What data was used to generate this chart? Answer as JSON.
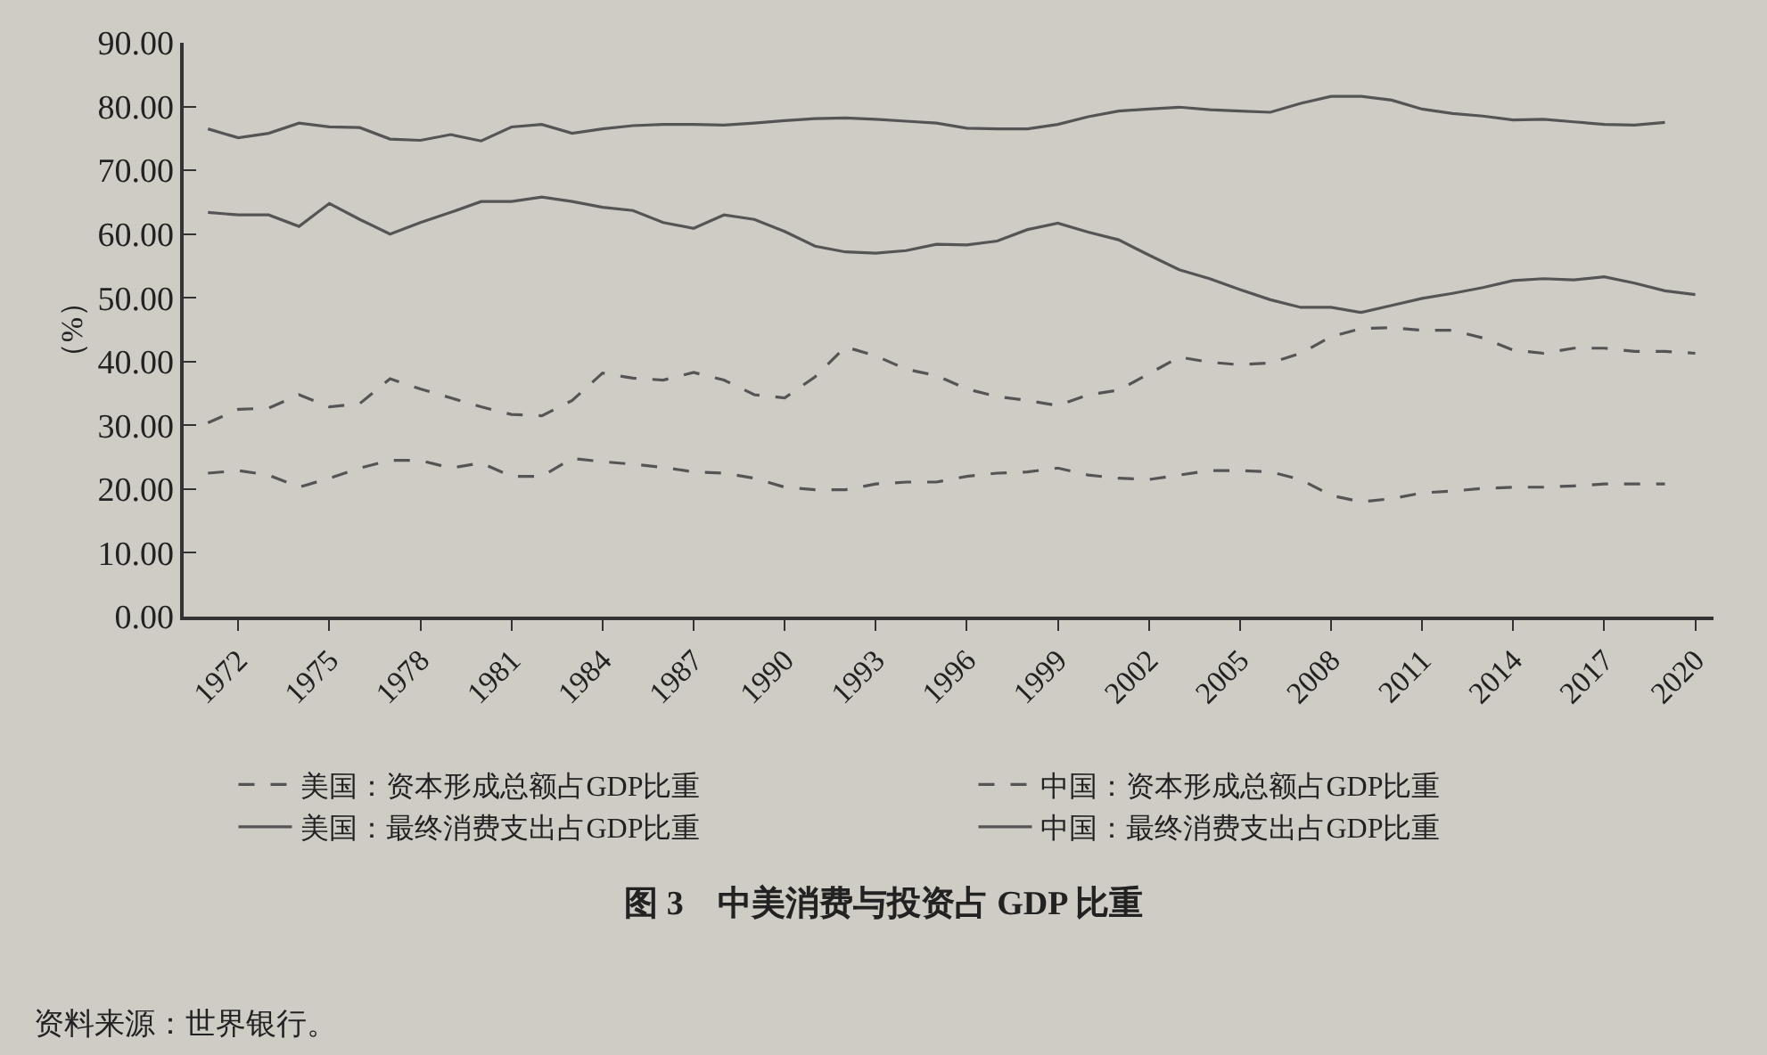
{
  "chart_data": {
    "type": "line",
    "title": "图 3　中美消费与投资占 GDP 比重",
    "ylabel": "（%）",
    "annotations": [
      "资料来源：世界银行。"
    ],
    "xlim": [
      1970.2,
      2020.6
    ],
    "xticks": [
      1972,
      1975,
      1978,
      1981,
      1984,
      1987,
      1990,
      1993,
      1996,
      1999,
      2002,
      2005,
      2008,
      2011,
      2014,
      2017,
      2020
    ],
    "ylim": [
      0,
      90
    ],
    "yticks": [
      {
        "value": 0,
        "label": "0.00"
      },
      {
        "value": 10,
        "label": "10.00"
      },
      {
        "value": 20,
        "label": "20.00"
      },
      {
        "value": 30,
        "label": "30.00"
      },
      {
        "value": 40,
        "label": "40.00"
      },
      {
        "value": 50,
        "label": "50.00"
      },
      {
        "value": 60,
        "label": "60.00"
      },
      {
        "value": 70,
        "label": "70.00"
      },
      {
        "value": 80,
        "label": "80.00"
      },
      {
        "value": 90,
        "label": "90.00"
      }
    ],
    "grid": false,
    "legend": "bottom",
    "marker": "none",
    "series": [
      {
        "name": "美国：资本形成总额占GDP比重",
        "color": "#555555",
        "line_style": "dashed",
        "x": [
          1971,
          1972,
          1973,
          1974,
          1975,
          1976,
          1977,
          1978,
          1979,
          1980,
          1981,
          1982,
          1983,
          1984,
          1985,
          1986,
          1987,
          1988,
          1989,
          1990,
          1991,
          1992,
          1993,
          1994,
          1995,
          1996,
          1997,
          1998,
          1999,
          2000,
          2001,
          2002,
          2003,
          2004,
          2005,
          2006,
          2007,
          2008,
          2009,
          2010,
          2011,
          2012,
          2013,
          2014,
          2015,
          2016,
          2017,
          2018,
          2019
        ],
        "values": [
          22.5,
          22.9,
          22.2,
          20.3,
          21.7,
          23.3,
          24.5,
          24.5,
          23.3,
          24.1,
          22.0,
          22.0,
          24.8,
          24.3,
          23.9,
          23.4,
          22.7,
          22.5,
          21.7,
          20.3,
          19.9,
          19.9,
          20.8,
          21.1,
          21.1,
          22.0,
          22.5,
          22.7,
          23.3,
          22.2,
          21.7,
          21.5,
          22.2,
          22.9,
          22.9,
          22.7,
          21.5,
          19.0,
          18.0,
          18.5,
          19.4,
          19.7,
          20.1,
          20.3,
          20.3,
          20.5,
          20.8,
          20.8,
          20.8
        ]
      },
      {
        "name": "中国：资本形成总额占GDP比重",
        "color": "#555555",
        "line_style": "dashed",
        "x": [
          1971,
          1972,
          1973,
          1974,
          1975,
          1976,
          1977,
          1978,
          1979,
          1980,
          1981,
          1982,
          1983,
          1984,
          1985,
          1986,
          1987,
          1988,
          1989,
          1990,
          1991,
          1992,
          1993,
          1994,
          1995,
          1996,
          1997,
          1998,
          1999,
          2000,
          2001,
          2002,
          2003,
          2004,
          2005,
          2006,
          2007,
          2008,
          2009,
          2010,
          2011,
          2012,
          2013,
          2014,
          2015,
          2016,
          2017,
          2018,
          2019,
          2020
        ],
        "values": [
          30.4,
          32.5,
          32.7,
          34.8,
          32.9,
          33.4,
          37.3,
          35.7,
          34.3,
          32.9,
          31.7,
          31.5,
          33.9,
          38.2,
          37.4,
          37.1,
          38.3,
          37.1,
          34.8,
          34.3,
          37.6,
          42.3,
          40.9,
          38.8,
          37.8,
          35.7,
          34.5,
          33.9,
          33.1,
          34.8,
          35.5,
          38.1,
          40.7,
          39.9,
          39.5,
          39.8,
          41.3,
          43.9,
          45.2,
          45.3,
          44.9,
          44.9,
          43.7,
          41.8,
          41.3,
          42.1,
          42.1,
          41.6,
          41.6,
          41.3
        ]
      },
      {
        "name": "美国：最终消费支出占GDP比重",
        "color": "#555555",
        "line_style": "solid",
        "x": [
          1971,
          1972,
          1973,
          1974,
          1975,
          1976,
          1977,
          1978,
          1979,
          1980,
          1981,
          1982,
          1983,
          1984,
          1985,
          1986,
          1987,
          1988,
          1989,
          1990,
          1991,
          1992,
          1993,
          1994,
          1995,
          1996,
          1997,
          1998,
          1999,
          2000,
          2001,
          2002,
          2003,
          2004,
          2005,
          2006,
          2007,
          2008,
          2009,
          2010,
          2011,
          2012,
          2013,
          2014,
          2015,
          2016,
          2017,
          2018,
          2019
        ],
        "values": [
          76.5,
          75.1,
          75.8,
          77.4,
          76.8,
          76.7,
          74.9,
          74.7,
          75.6,
          74.6,
          76.8,
          77.2,
          75.8,
          76.5,
          77.0,
          77.2,
          77.2,
          77.1,
          77.4,
          77.8,
          78.1,
          78.2,
          78.0,
          77.7,
          77.4,
          76.6,
          76.5,
          76.5,
          77.2,
          78.4,
          79.3,
          79.6,
          79.9,
          79.5,
          79.3,
          79.1,
          80.5,
          81.6,
          81.6,
          81.0,
          79.6,
          78.9,
          78.5,
          77.9,
          78.0,
          77.6,
          77.2,
          77.1,
          77.5
        ]
      },
      {
        "name": "中国：最终消费支出占GDP比重",
        "color": "#555555",
        "line_style": "solid",
        "x": [
          1971,
          1972,
          1973,
          1974,
          1975,
          1976,
          1977,
          1978,
          1979,
          1980,
          1981,
          1982,
          1983,
          1984,
          1985,
          1986,
          1987,
          1988,
          1989,
          1990,
          1991,
          1992,
          1993,
          1994,
          1995,
          1996,
          1997,
          1998,
          1999,
          2000,
          2001,
          2002,
          2003,
          2004,
          2005,
          2006,
          2007,
          2008,
          2009,
          2010,
          2011,
          2012,
          2013,
          2014,
          2015,
          2016,
          2017,
          2018,
          2019,
          2020
        ],
        "values": [
          63.4,
          63.0,
          63.0,
          61.2,
          64.8,
          62.3,
          60.0,
          61.8,
          63.4,
          65.1,
          65.1,
          65.8,
          65.1,
          64.2,
          63.7,
          61.8,
          60.9,
          63.0,
          62.3,
          60.4,
          58.1,
          57.2,
          57.0,
          57.4,
          58.4,
          58.3,
          58.9,
          60.7,
          61.7,
          60.3,
          59.1,
          56.7,
          54.4,
          53.0,
          51.3,
          49.7,
          48.5,
          48.5,
          47.7,
          48.8,
          49.9,
          50.7,
          51.6,
          52.7,
          53.0,
          52.8,
          53.3,
          52.3,
          51.1,
          50.5
        ]
      }
    ]
  }
}
